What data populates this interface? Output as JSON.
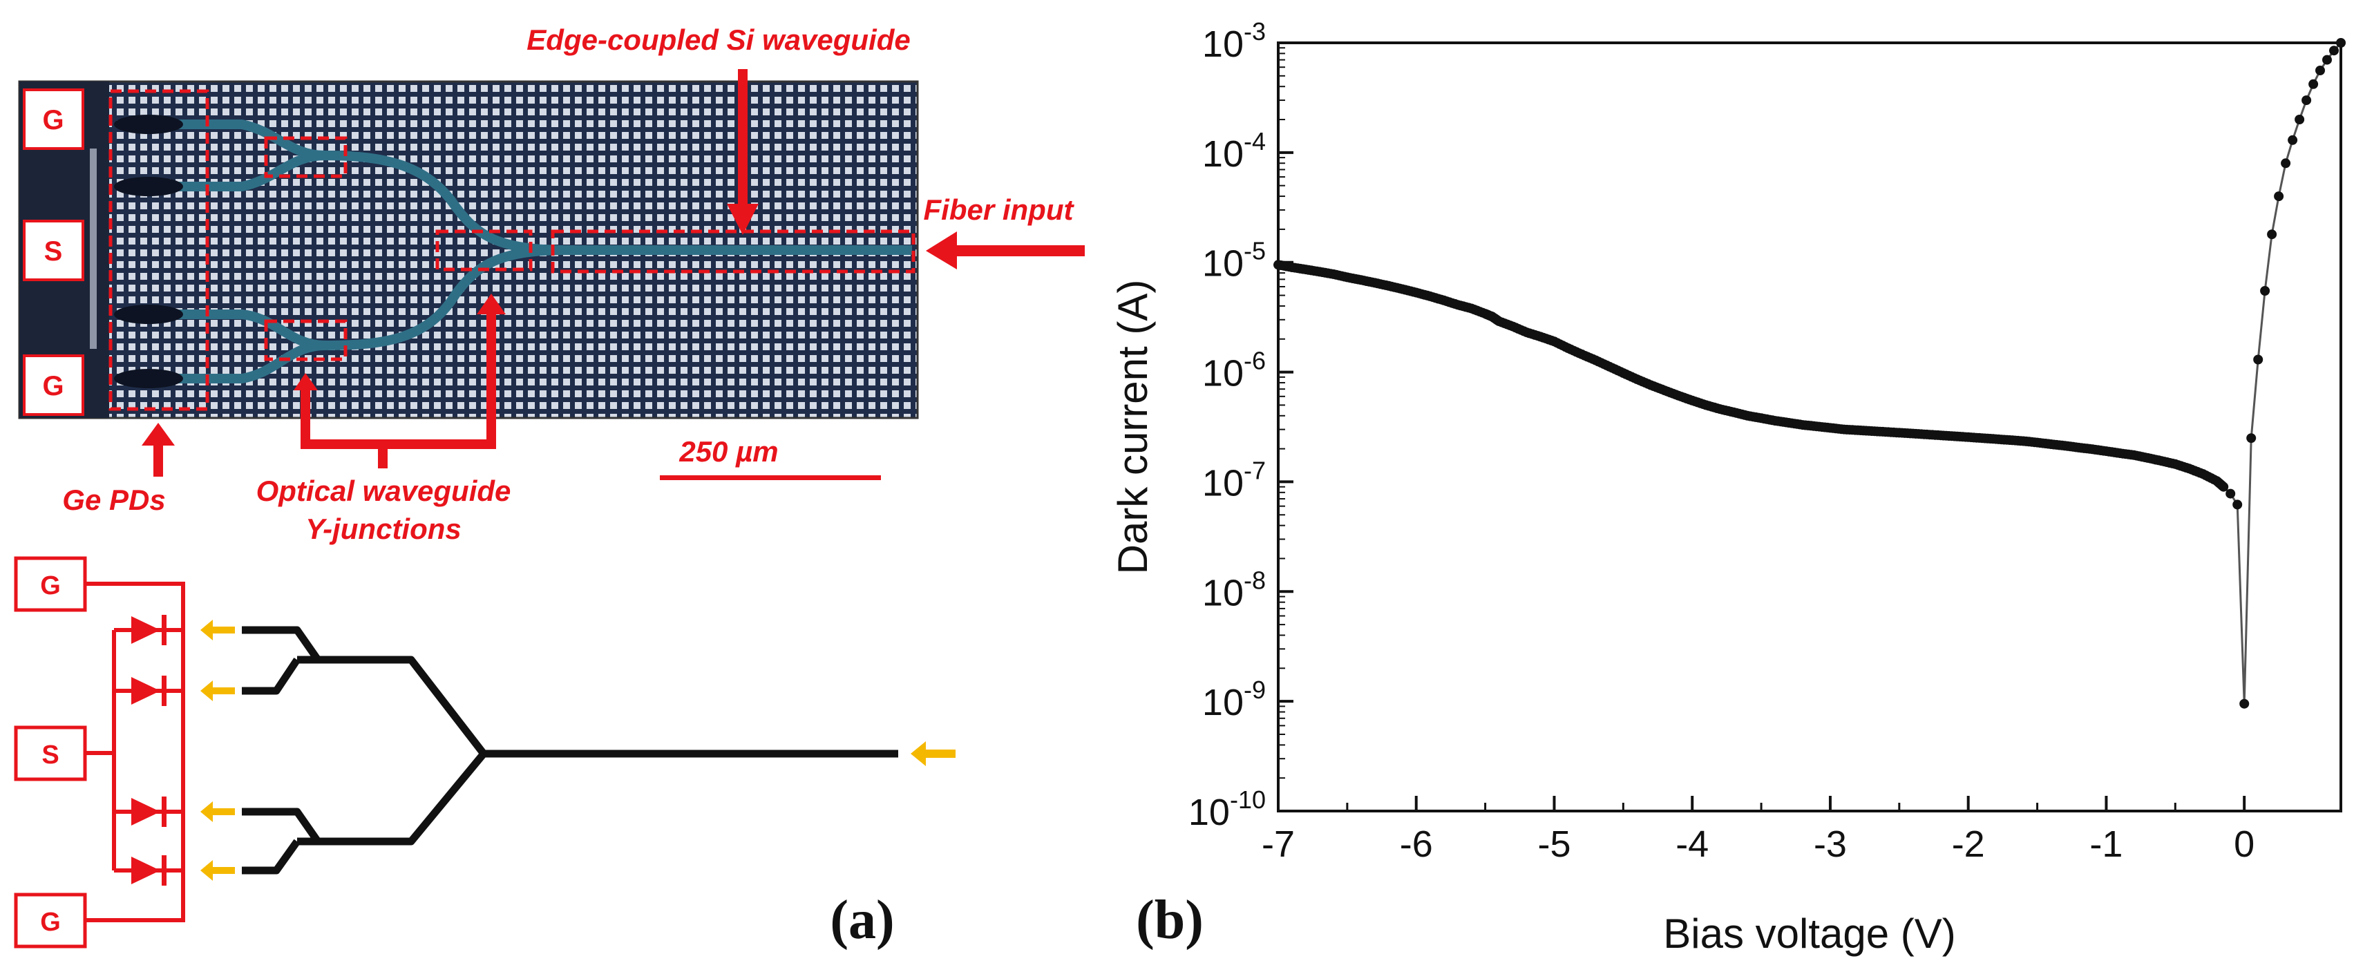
{
  "panel_a": {
    "label": "(a)",
    "pads": [
      "G",
      "S",
      "G"
    ],
    "annotations": {
      "edge_waveguide": "Edge-coupled Si waveguide",
      "fiber_input": "Fiber input",
      "ge_pds": "Ge PDs",
      "y_junctions_line1": "Optical waveguide",
      "y_junctions_line2": "Y-junctions",
      "scale_bar": "250 µm"
    },
    "schematic_pads": [
      "G",
      "S",
      "G"
    ]
  },
  "panel_b": {
    "label": "(b)"
  },
  "colors": {
    "annotation": "#e8141b",
    "waveguide": "#111111",
    "light_arrow": "#f5b800",
    "chip_bg": "#1f2d4a"
  },
  "chart_data": {
    "type": "scatter",
    "yscale": "log",
    "xlabel": "Bias voltage (V)",
    "ylabel": "Dark current (A)",
    "xlim": [
      -7,
      0.7
    ],
    "ylim_exp": [
      -10,
      -3
    ],
    "xticks": [
      -7,
      -6,
      -5,
      -4,
      -3,
      -2,
      -1,
      0
    ],
    "xtick_labels": [
      "-7",
      "-6",
      "-5",
      "-4",
      "-3",
      "-2",
      "-1",
      "0"
    ],
    "yticks_exp": [
      -10,
      -9,
      -8,
      -7,
      -6,
      -5,
      -4,
      -3
    ],
    "ytick_base": "10",
    "ytick_exps": [
      "-10",
      "-9",
      "-8",
      "-7",
      "-6",
      "-5",
      "-4",
      "-3"
    ],
    "series": [
      {
        "name": "Dark current",
        "x": [
          -7.0,
          -6.9,
          -6.8,
          -6.7,
          -6.6,
          -6.5,
          -6.4,
          -6.3,
          -6.2,
          -6.1,
          -6.0,
          -5.9,
          -5.8,
          -5.7,
          -5.6,
          -5.5,
          -5.45,
          -5.4,
          -5.3,
          -5.2,
          -5.1,
          -5.0,
          -4.9,
          -4.8,
          -4.7,
          -4.6,
          -4.5,
          -4.4,
          -4.3,
          -4.2,
          -4.1,
          -4.0,
          -3.9,
          -3.8,
          -3.7,
          -3.6,
          -3.5,
          -3.4,
          -3.3,
          -3.2,
          -3.1,
          -3.0,
          -2.9,
          -2.8,
          -2.7,
          -2.6,
          -2.5,
          -2.4,
          -2.3,
          -2.2,
          -2.1,
          -2.0,
          -1.9,
          -1.8,
          -1.7,
          -1.6,
          -1.5,
          -1.4,
          -1.3,
          -1.2,
          -1.1,
          -1.0,
          -0.9,
          -0.8,
          -0.7,
          -0.6,
          -0.5,
          -0.4,
          -0.3,
          -0.2,
          -0.15,
          -0.1,
          -0.05,
          0.0,
          0.05,
          0.1,
          0.15,
          0.2,
          0.25,
          0.3,
          0.35,
          0.4,
          0.45,
          0.5,
          0.55,
          0.6,
          0.65,
          0.7
        ],
        "y": [
          9.5e-06,
          9e-06,
          8.6e-06,
          8.2e-06,
          7.8e-06,
          7.3e-06,
          6.9e-06,
          6.5e-06,
          6.1e-06,
          5.7e-06,
          5.3e-06,
          4.9e-06,
          4.5e-06,
          4.1e-06,
          3.8e-06,
          3.4e-06,
          3.2e-06,
          2.9e-06,
          2.6e-06,
          2.3e-06,
          2.1e-06,
          1.9e-06,
          1.65e-06,
          1.45e-06,
          1.28e-06,
          1.12e-06,
          9.8e-07,
          8.6e-07,
          7.6e-07,
          6.8e-07,
          6.1e-07,
          5.5e-07,
          5e-07,
          4.6e-07,
          4.3e-07,
          4e-07,
          3.8e-07,
          3.6e-07,
          3.45e-07,
          3.3e-07,
          3.2e-07,
          3.1e-07,
          3e-07,
          2.95e-07,
          2.9e-07,
          2.85e-07,
          2.8e-07,
          2.75e-07,
          2.7e-07,
          2.65e-07,
          2.6e-07,
          2.55e-07,
          2.5e-07,
          2.45e-07,
          2.4e-07,
          2.35e-07,
          2.28e-07,
          2.2e-07,
          2.13e-07,
          2.05e-07,
          1.98e-07,
          1.9e-07,
          1.82e-07,
          1.75e-07,
          1.65e-07,
          1.55e-07,
          1.45e-07,
          1.32e-07,
          1.18e-07,
          1.02e-07,
          9e-08,
          7.8e-08,
          6.2e-08,
          9.5e-10,
          2.5e-07,
          1.3e-06,
          5.5e-06,
          1.8e-05,
          4e-05,
          8e-05,
          0.00013,
          0.0002,
          0.0003,
          0.00042,
          0.00056,
          0.0007,
          0.00085,
          0.001
        ]
      }
    ]
  }
}
